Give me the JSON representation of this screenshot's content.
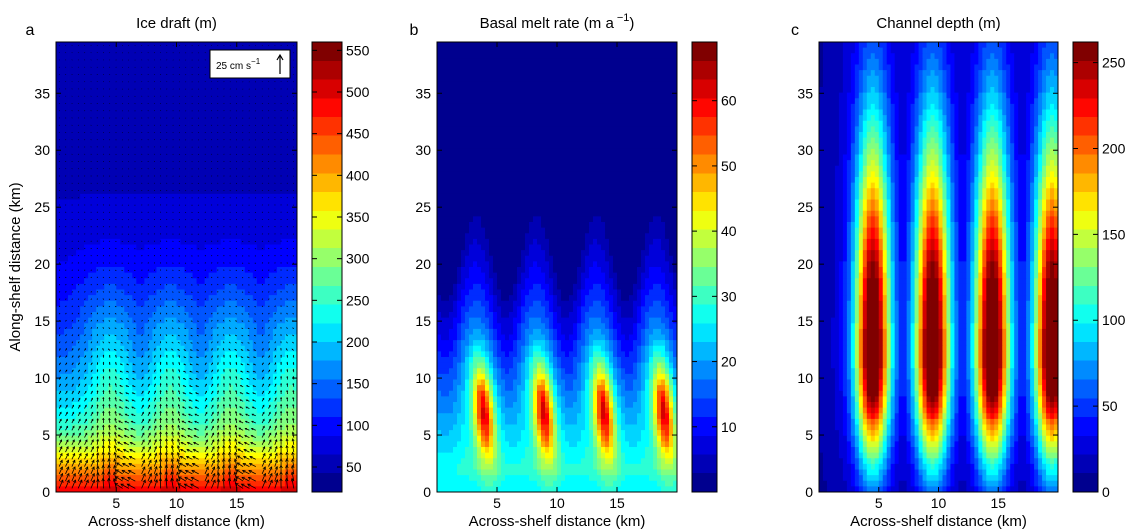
{
  "chart_data": [
    {
      "type": "heatmap",
      "panel_label": "a",
      "title": "Ice draft (m)",
      "xlabel": "Across-shelf distance (km)",
      "ylabel": "Along-shelf distance (km)",
      "xlim": [
        0,
        20
      ],
      "ylim": [
        0,
        39.5
      ],
      "x_ticks": [
        5,
        10,
        15
      ],
      "y_ticks": [
        0,
        5,
        10,
        15,
        20,
        25,
        30,
        35
      ],
      "colorbar": {
        "min": 20,
        "max": 560,
        "ticks": [
          50,
          100,
          150,
          200,
          250,
          300,
          350,
          400,
          450,
          500,
          550
        ]
      },
      "channel_centers_km": [
        4.5,
        9.5,
        14.5,
        19.5
      ],
      "overlay": "velocity vectors",
      "velocity_scale_label": "25 cm s",
      "velocity_scale_exp": "−1"
    },
    {
      "type": "heatmap",
      "panel_label": "b",
      "title": "Basal melt rate (m a",
      "title_exp": "−1",
      "title_close": ")",
      "xlabel": "Across-shelf distance (km)",
      "xlim": [
        0,
        20
      ],
      "ylim": [
        0,
        39.5
      ],
      "x_ticks": [
        5,
        10,
        15
      ],
      "y_ticks": [
        0,
        5,
        10,
        15,
        20,
        25,
        30,
        35
      ],
      "colorbar": {
        "min": 0,
        "max": 69,
        "ticks": [
          10,
          20,
          30,
          40,
          50,
          60
        ]
      },
      "channel_centers_km": [
        4.5,
        9.5,
        14.5,
        19.5
      ]
    },
    {
      "type": "heatmap",
      "panel_label": "c",
      "title": "Channel depth (m)",
      "xlabel": "Across-shelf distance (km)",
      "xlim": [
        0,
        20
      ],
      "ylim": [
        0,
        39.5
      ],
      "x_ticks": [
        5,
        10,
        15
      ],
      "y_ticks": [
        0,
        5,
        10,
        15,
        20,
        25,
        30,
        35
      ],
      "colorbar": {
        "min": 0,
        "max": 262,
        "ticks": [
          0,
          50,
          100,
          150,
          200,
          250
        ]
      },
      "channel_centers_km": [
        4.5,
        9.5,
        14.5,
        19.5
      ]
    }
  ],
  "colors": {
    "jet": [
      "#00008f",
      "#0000ff",
      "#0080ff",
      "#00ffff",
      "#80ff80",
      "#ffff00",
      "#ff8000",
      "#ff0000",
      "#800000"
    ]
  }
}
